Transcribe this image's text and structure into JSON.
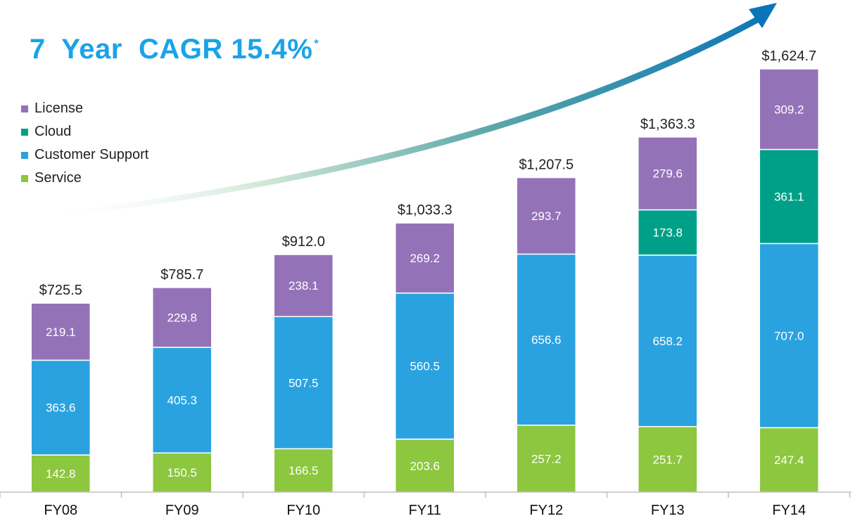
{
  "headline": {
    "main": "7  Year  CAGR 15.4%",
    "footnote_mark": "*",
    "color": "#1aa3e8"
  },
  "chart_data": {
    "type": "bar",
    "stacked": true,
    "categories": [
      "FY08",
      "FY09",
      "FY10",
      "FY11",
      "FY12",
      "FY13",
      "FY14"
    ],
    "series": [
      {
        "name": "Service",
        "color": "#8dc63f",
        "values": [
          142.8,
          150.5,
          166.5,
          203.6,
          257.2,
          251.7,
          247.4
        ]
      },
      {
        "name": "Customer Support",
        "color": "#2aa2e0",
        "values": [
          363.6,
          405.3,
          507.5,
          560.5,
          656.6,
          658.2,
          707.0
        ]
      },
      {
        "name": "Cloud",
        "color": "#00a088",
        "values": [
          0,
          0,
          0,
          0,
          0,
          173.8,
          361.1
        ]
      },
      {
        "name": "License",
        "color": "#9472b8",
        "values": [
          219.1,
          229.8,
          238.1,
          269.2,
          293.7,
          279.6,
          309.2
        ]
      }
    ],
    "segment_labels": [
      [
        "142.8",
        "150.5",
        "166.5",
        "203.6",
        "257.2",
        "251.7",
        "247.4"
      ],
      [
        "363.6",
        "405.3",
        "507.5",
        "560.5",
        "656.6",
        "658.2",
        "707.0"
      ],
      [
        "",
        "",
        "",
        "",
        "",
        "173.8",
        "361.1"
      ],
      [
        "219.1",
        "229.8",
        "238.1",
        "269.2",
        "293.7",
        "279.6",
        "309.2"
      ]
    ],
    "totals": [
      "$725.5",
      "$785.7",
      "$912.0",
      "$1,033.3",
      "$1,207.5",
      "$1,363.3",
      "$1,624.7"
    ],
    "total_values": [
      725.5,
      785.7,
      912.0,
      1033.3,
      1207.5,
      1363.3,
      1624.7
    ],
    "legend": [
      "License",
      "Cloud",
      "Customer Support",
      "Service"
    ],
    "legend_position": "top-left",
    "grid": false,
    "ylim": [
      0,
      1624.7
    ],
    "trend_arrow_color": "#0a74b8"
  }
}
